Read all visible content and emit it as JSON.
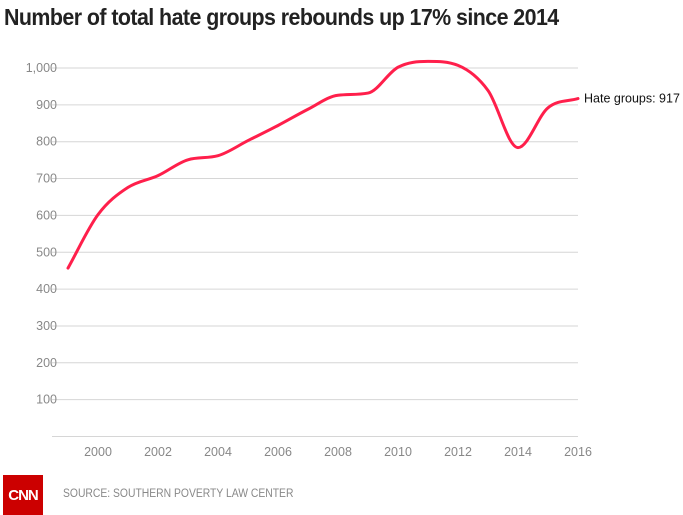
{
  "chart_data": {
    "type": "line",
    "title": "Number of total hate groups rebounds up 17% since 2014",
    "x": [
      1999,
      2000,
      2001,
      2002,
      2003,
      2004,
      2005,
      2006,
      2007,
      2008,
      2009,
      2010,
      2011,
      2012,
      2013,
      2014,
      2015,
      2016
    ],
    "series": [
      {
        "values": [
          457,
          602,
          676,
          708,
          751,
          762,
          803,
          844,
          888,
          926,
          932,
          1002,
          1018,
          1007,
          939,
          784,
          892,
          917
        ],
        "color": "#ff1f4b"
      }
    ],
    "end_label": "Hate groups: 917",
    "xlim": [
      1999,
      2016
    ],
    "ylim": [
      0,
      1000
    ],
    "x_ticks": [
      "2000",
      "2002",
      "2004",
      "2006",
      "2008",
      "2010",
      "2012",
      "2014",
      "2016"
    ],
    "y_ticks": [
      "100",
      "200",
      "300",
      "400",
      "500",
      "600",
      "700",
      "800",
      "900",
      "1,000"
    ],
    "grid": true,
    "xlabel": "",
    "ylabel": ""
  },
  "footer": {
    "source": "SOURCE: SOUTHERN POVERTY LAW CENTER",
    "logo": "CNN"
  }
}
